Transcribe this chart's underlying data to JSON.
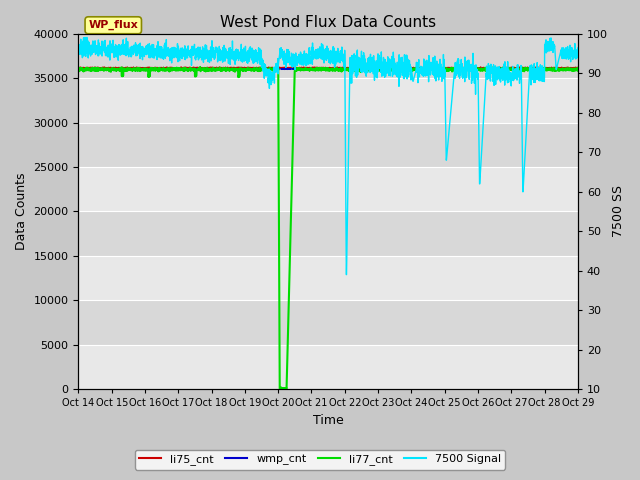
{
  "title": "West Pond Flux Data Counts",
  "xlabel": "Time",
  "ylabel_left": "Data Counts",
  "ylabel_right": "7500 SS",
  "xlim_dates": [
    "Oct 14",
    "Oct 15",
    "Oct 16",
    "Oct 17",
    "Oct 18",
    "Oct 19",
    "Oct 20",
    "Oct 21",
    "Oct 22",
    "Oct 23",
    "Oct 24",
    "Oct 25",
    "Oct 26",
    "Oct 27",
    "Oct 28",
    "Oct 29"
  ],
  "ylim_left": [
    0,
    40000
  ],
  "ylim_right": [
    10,
    100
  ],
  "yticks_left": [
    0,
    5000,
    10000,
    15000,
    20000,
    25000,
    30000,
    35000,
    40000
  ],
  "yticks_right": [
    10,
    20,
    30,
    40,
    50,
    60,
    70,
    80,
    90,
    100
  ],
  "fig_bg_color": "#c8c8c8",
  "plot_bg_color": "#e8e8e8",
  "li77_cnt_color": "#00dd00",
  "li75_cnt_color": "#cc0000",
  "wmp_cnt_color": "#0000cc",
  "signal_7500_color": "#00e5ff",
  "li77_cnt_value": 36000,
  "wp_flux_box_color": "#ffff99",
  "wp_flux_text_color": "#990000",
  "legend_items": [
    "li75_cnt",
    "wmp_cnt",
    "li77_cnt",
    "7500 Signal"
  ],
  "legend_colors": [
    "#cc0000",
    "#0000cc",
    "#00dd00",
    "#00e5ff"
  ],
  "n_days": 15,
  "n_pts": 3000
}
